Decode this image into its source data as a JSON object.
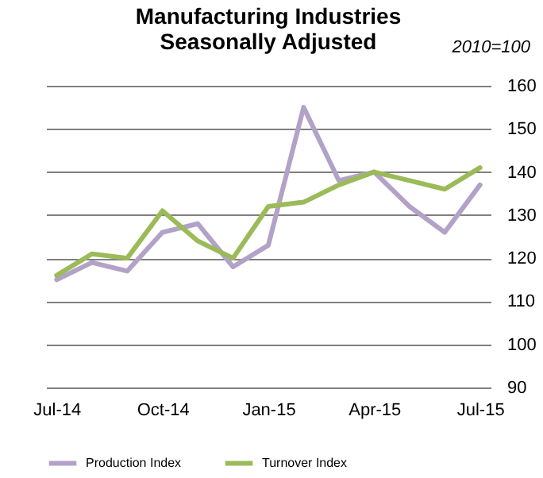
{
  "chart_data": {
    "type": "line",
    "title": "Manufacturing  Industries\nSeasonally Adjusted",
    "annotations": [
      "2010=100"
    ],
    "categories": [
      "Jul-14",
      null,
      null,
      "Oct-14",
      null,
      null,
      "Jan-15",
      null,
      null,
      "Apr-15",
      null,
      null,
      "Jul-15"
    ],
    "series": [
      {
        "name": "Production Index",
        "color": "#b3a2c7",
        "values": [
          115,
          119,
          117,
          126,
          128,
          118,
          123,
          155,
          138,
          140,
          132,
          126,
          137
        ]
      },
      {
        "name": "Turnover Index",
        "color": "#9bbb59",
        "values": [
          116,
          121,
          120,
          131,
          124,
          120,
          132,
          133,
          137,
          140,
          138,
          136,
          141
        ]
      }
    ],
    "ylim": [
      90,
      160
    ],
    "yticks": [
      90,
      100,
      110,
      120,
      130,
      140,
      150,
      160
    ],
    "grid": "y",
    "legend": "bottom",
    "line_style": "solid",
    "marker": "none"
  }
}
